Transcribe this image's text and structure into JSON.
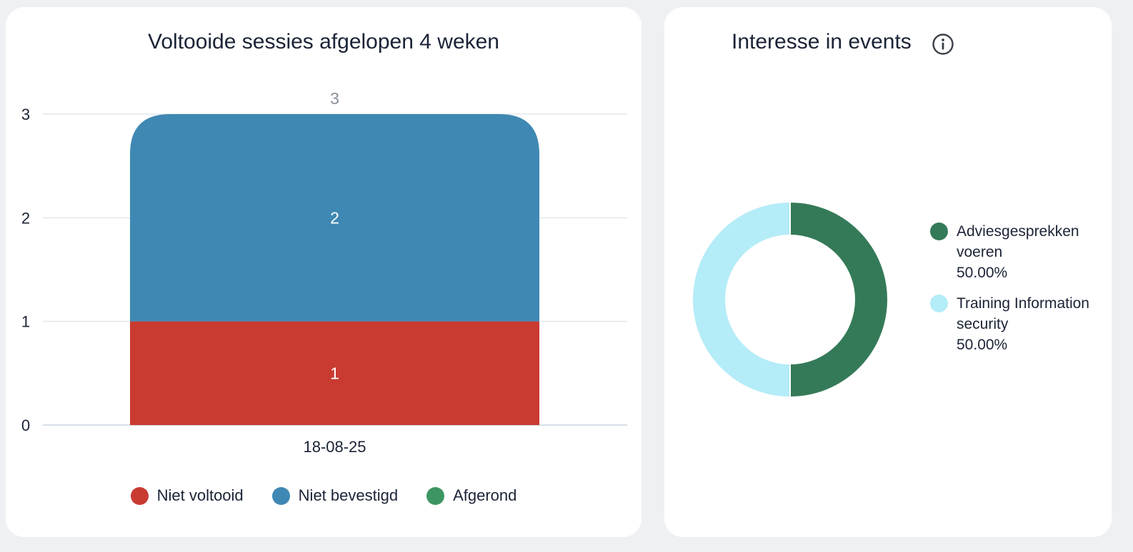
{
  "sessions_card": {
    "title": "Voltooide sessies afgelopen 4 weken",
    "chart_data": {
      "type": "bar",
      "stacked": true,
      "categories": [
        "18-08-25"
      ],
      "series": [
        {
          "name": "Niet voltooid",
          "values": [
            1
          ],
          "color": "#c93a31"
        },
        {
          "name": "Niet bevestigd",
          "values": [
            2
          ],
          "color": "#3f88b3"
        },
        {
          "name": "Afgerond",
          "values": [
            0
          ],
          "color": "#3d9563"
        }
      ],
      "totals": [
        3
      ],
      "ylim": [
        0,
        3
      ],
      "yticks": [
        0,
        1,
        2,
        3
      ],
      "grid": true,
      "legend_position": "bottom",
      "title": "Voltooide sessies afgelopen 4 weken"
    }
  },
  "interest_card": {
    "title": "Interesse in events",
    "info_icon": "info-circle-icon",
    "chart_data": {
      "type": "pie",
      "donut": true,
      "slices": [
        {
          "label": "Adviesgesprekken voeren",
          "value": 50.0,
          "percent_text": "50.00%",
          "color": "#357a58"
        },
        {
          "label": "Training Information security",
          "value": 50.0,
          "percent_text": "50.00%",
          "color": "#b4ecf7"
        }
      ],
      "legend_position": "right",
      "title": "Interesse in events"
    }
  }
}
